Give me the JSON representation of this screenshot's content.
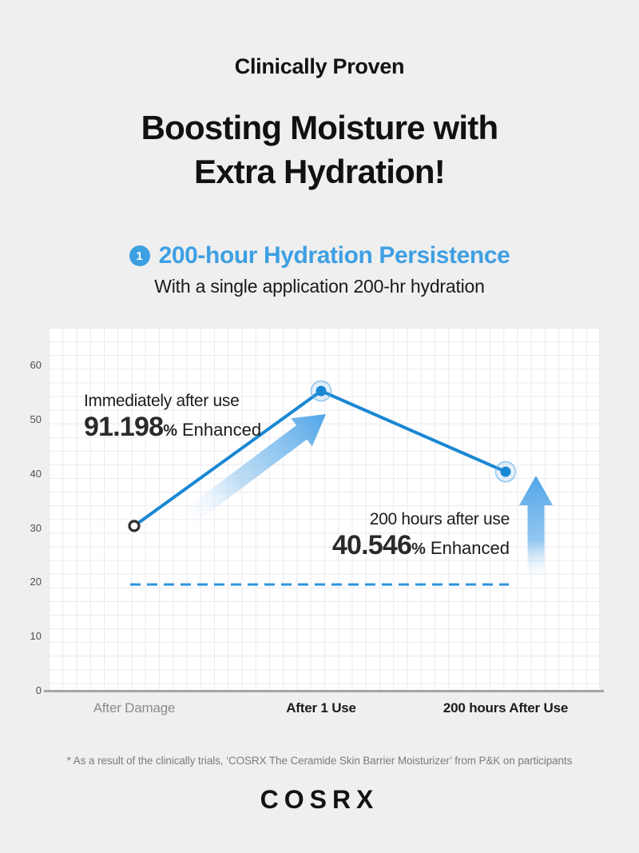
{
  "header": {
    "eyebrow": "Clinically Proven",
    "title_line1": "Boosting Moisture with",
    "title_line2": "Extra Hydration!"
  },
  "section": {
    "badge": "1",
    "heading": "200-hour Hydration Persistence",
    "subheading": "With a single application 200-hr hydration"
  },
  "chart_data": {
    "type": "line",
    "title": "200-hour Hydration Persistence",
    "categories": [
      "After Damage",
      "After 1 Use",
      "200 hours After Use"
    ],
    "values": [
      30.4,
      55.3,
      40.4
    ],
    "baseline_value": 19.6,
    "yticks": [
      0,
      10,
      20,
      30,
      40,
      50,
      60
    ],
    "ylim": [
      0,
      67
    ],
    "grid": true,
    "legend": "none",
    "annotations": [
      {
        "label": "Immediately after use",
        "value": "91.198",
        "unit": "%",
        "suffix": "Enhanced"
      },
      {
        "label": "200 hours after use",
        "value": "40.546",
        "unit": "%",
        "suffix": "Enhanced"
      }
    ]
  },
  "colors": {
    "accent_blue": "#3e9fe3",
    "line_blue": "#1a87d3",
    "arrow_blue": "#4fa5e8",
    "dash_blue": "#2e94dd",
    "axis_gray": "#a6a6a6"
  },
  "footnote": "* As a result of the clinically trials, ‘COSRX The Ceramide Skin Barrier Moisturizer’ from P&K on participants",
  "logo": "COSRX"
}
